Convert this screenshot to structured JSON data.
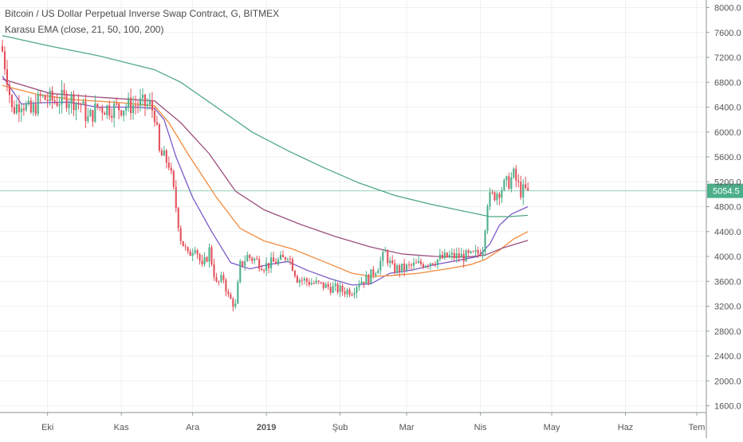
{
  "chart_data": {
    "type": "candlestick",
    "title": "Bitcoin / US Dollar Perpetual Inverse Swap Contract, G, BITMEX",
    "indicator_label": "Karasu EMA (close, 21, 50, 100, 200)",
    "y_ticks": [
      "8000.0",
      "7600.0",
      "7200.0",
      "6800.0",
      "6400.0",
      "6000.0",
      "5600.0",
      "5200.0",
      "4800.0",
      "4400.0",
      "4000.0",
      "3600.0",
      "3200.0",
      "2800.0",
      "2400.0",
      "2000.0",
      "1600.0"
    ],
    "ylim": [
      1600,
      8000
    ],
    "x_ticks": [
      {
        "label": "Eki",
        "day": 19
      },
      {
        "label": "Kas",
        "day": 50
      },
      {
        "label": "Ara",
        "day": 80
      },
      {
        "label": "2019",
        "day": 111,
        "bold": true
      },
      {
        "label": "Şub",
        "day": 142
      },
      {
        "label": "Mar",
        "day": 170
      },
      {
        "label": "Nis",
        "day": 201
      },
      {
        "label": "May",
        "day": 231
      },
      {
        "label": "Haz",
        "day": 262
      },
      {
        "label": "Tem",
        "day": 292
      }
    ],
    "xlim": [
      0,
      294
    ],
    "last_price": {
      "value": 5054.5,
      "label": "5054.5"
    },
    "candle_keyframes": [
      [
        0,
        7300
      ],
      [
        2,
        6900
      ],
      [
        4,
        6350
      ],
      [
        8,
        6500
      ],
      [
        12,
        6300
      ],
      [
        16,
        6550
      ],
      [
        22,
        6500
      ],
      [
        28,
        6550
      ],
      [
        33,
        6450
      ],
      [
        36,
        6200
      ],
      [
        40,
        6400
      ],
      [
        47,
        6380
      ],
      [
        53,
        6420
      ],
      [
        58,
        6450
      ],
      [
        62,
        6420
      ],
      [
        64,
        6300
      ],
      [
        66,
        5650
      ],
      [
        70,
        5500
      ],
      [
        73,
        4800
      ],
      [
        75,
        4300
      ],
      [
        78,
        4000
      ],
      [
        81,
        4200
      ],
      [
        84,
        3800
      ],
      [
        87,
        4100
      ],
      [
        90,
        3550
      ],
      [
        93,
        3650
      ],
      [
        95,
        3350
      ],
      [
        98,
        3200
      ],
      [
        100,
        3850
      ],
      [
        103,
        4000
      ],
      [
        106,
        3950
      ],
      [
        110,
        3850
      ],
      [
        114,
        3900
      ],
      [
        118,
        3950
      ],
      [
        120,
        4050
      ],
      [
        124,
        3650
      ],
      [
        128,
        3600
      ],
      [
        133,
        3550
      ],
      [
        138,
        3500
      ],
      [
        143,
        3450
      ],
      [
        147,
        3450
      ],
      [
        150,
        3600
      ],
      [
        154,
        3650
      ],
      [
        158,
        3850
      ],
      [
        161,
        4050
      ],
      [
        164,
        3800
      ],
      [
        168,
        3800
      ],
      [
        173,
        3850
      ],
      [
        178,
        3900
      ],
      [
        183,
        3950
      ],
      [
        188,
        4000
      ],
      [
        193,
        4000
      ],
      [
        197,
        4000
      ],
      [
        200,
        4050
      ],
      [
        202,
        4150
      ],
      [
        204,
        4900
      ],
      [
        207,
        5000
      ],
      [
        210,
        5100
      ],
      [
        213,
        5200
      ],
      [
        215,
        5300
      ],
      [
        218,
        5050
      ],
      [
        221,
        5054.5
      ]
    ],
    "series": [
      {
        "period": 21,
        "color": "#7b5bc8",
        "values": [
          [
            0,
            6900
          ],
          [
            8,
            6450
          ],
          [
            16,
            6470
          ],
          [
            28,
            6480
          ],
          [
            40,
            6400
          ],
          [
            55,
            6400
          ],
          [
            64,
            6380
          ],
          [
            68,
            6200
          ],
          [
            73,
            5600
          ],
          [
            80,
            4950
          ],
          [
            88,
            4400
          ],
          [
            96,
            3900
          ],
          [
            104,
            3800
          ],
          [
            112,
            3870
          ],
          [
            120,
            3920
          ],
          [
            128,
            3780
          ],
          [
            138,
            3640
          ],
          [
            147,
            3540
          ],
          [
            155,
            3560
          ],
          [
            163,
            3730
          ],
          [
            172,
            3780
          ],
          [
            182,
            3870
          ],
          [
            192,
            3940
          ],
          [
            200,
            4000
          ],
          [
            205,
            4200
          ],
          [
            209,
            4500
          ],
          [
            214,
            4680
          ],
          [
            221,
            4800
          ]
        ]
      },
      {
        "period": 50,
        "color": "#f28a3c",
        "values": [
          [
            0,
            6750
          ],
          [
            15,
            6600
          ],
          [
            30,
            6520
          ],
          [
            50,
            6470
          ],
          [
            64,
            6420
          ],
          [
            70,
            6150
          ],
          [
            78,
            5650
          ],
          [
            90,
            4950
          ],
          [
            100,
            4450
          ],
          [
            110,
            4250
          ],
          [
            122,
            4120
          ],
          [
            135,
            3920
          ],
          [
            147,
            3730
          ],
          [
            155,
            3680
          ],
          [
            163,
            3690
          ],
          [
            175,
            3730
          ],
          [
            187,
            3800
          ],
          [
            197,
            3870
          ],
          [
            203,
            3950
          ],
          [
            209,
            4100
          ],
          [
            215,
            4280
          ],
          [
            221,
            4400
          ]
        ]
      },
      {
        "period": 100,
        "color": "#9c4f7e",
        "values": [
          [
            0,
            6850
          ],
          [
            20,
            6620
          ],
          [
            40,
            6560
          ],
          [
            64,
            6500
          ],
          [
            75,
            6150
          ],
          [
            87,
            5650
          ],
          [
            98,
            5050
          ],
          [
            110,
            4750
          ],
          [
            125,
            4520
          ],
          [
            140,
            4320
          ],
          [
            155,
            4150
          ],
          [
            168,
            4040
          ],
          [
            182,
            4000
          ],
          [
            195,
            3990
          ],
          [
            203,
            4020
          ],
          [
            210,
            4130
          ],
          [
            221,
            4260
          ]
        ]
      },
      {
        "period": 200,
        "color": "#4fa882",
        "values": [
          [
            0,
            7550
          ],
          [
            20,
            7380
          ],
          [
            40,
            7230
          ],
          [
            64,
            7000
          ],
          [
            75,
            6800
          ],
          [
            90,
            6400
          ],
          [
            105,
            6000
          ],
          [
            120,
            5700
          ],
          [
            135,
            5430
          ],
          [
            150,
            5180
          ],
          [
            165,
            4980
          ],
          [
            180,
            4840
          ],
          [
            195,
            4720
          ],
          [
            205,
            4640
          ],
          [
            213,
            4640
          ],
          [
            221,
            4660
          ]
        ]
      }
    ]
  }
}
